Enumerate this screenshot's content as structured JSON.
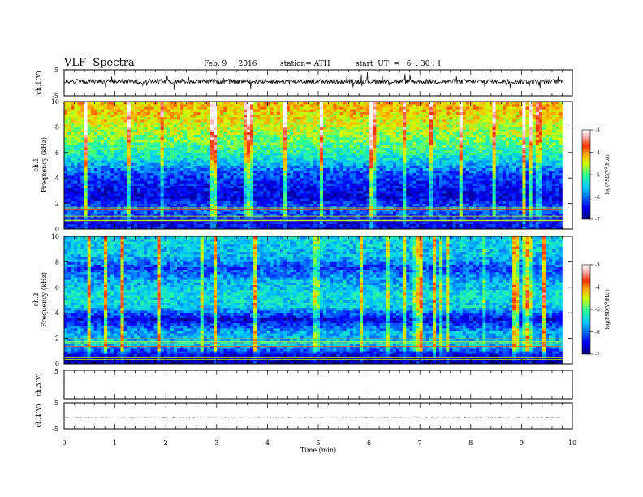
{
  "header": {
    "title": "VLF  Spectra",
    "date": "Feb. 9   , 2016",
    "station": "station= ATH",
    "start_ut": "start  UT  =   6  : 30 : 1"
  },
  "chart_data": [
    {
      "type": "line",
      "title": "",
      "ylabel": "ch.1(V)",
      "xlim": [
        0,
        10
      ],
      "ylim": [
        -5,
        5
      ],
      "yticks": [
        "5",
        "-5"
      ],
      "description_values": {
        "baseline_V": 0.5,
        "noise_amplitude_V": 1.5
      },
      "x_end_min": 9.8
    },
    {
      "type": "heatmap",
      "ylabel": "ch.1\nFrequency  (kHz)",
      "xlim": [
        0,
        10
      ],
      "ylim": [
        0,
        10
      ],
      "yticks": [
        "0",
        "2",
        "4",
        "6",
        "8",
        "10"
      ],
      "colorbar": {
        "label": "log(PSD(V²/Hz))",
        "range": [
          -7,
          -3
        ],
        "ticks": [
          "-3",
          "-4",
          "-5",
          "-6",
          "-7"
        ]
      },
      "band_profile_logPSD": [
        {
          "f_khz": 0.5,
          "value": -6.5
        },
        {
          "f_khz": 1.5,
          "value": -6.0
        },
        {
          "f_khz": 2.5,
          "value": -6.6
        },
        {
          "f_khz": 3.5,
          "value": -6.4
        },
        {
          "f_khz": 4.5,
          "value": -6.1
        },
        {
          "f_khz": 5.5,
          "value": -5.4
        },
        {
          "f_khz": 6.5,
          "value": -5.0
        },
        {
          "f_khz": 7.5,
          "value": -4.7
        },
        {
          "f_khz": 8.5,
          "value": -4.4
        },
        {
          "f_khz": 9.5,
          "value": -4.2
        }
      ]
    },
    {
      "type": "heatmap",
      "ylabel": "ch.2\nFrequency  (kHz)",
      "xlim": [
        0,
        10
      ],
      "ylim": [
        0,
        10
      ],
      "yticks": [
        "0",
        "2",
        "4",
        "6",
        "8",
        "10"
      ],
      "colorbar": {
        "label": "log(PSD(V²/Hz))",
        "range": [
          -7,
          -3
        ],
        "ticks": [
          "-3",
          "-4",
          "-5",
          "-6",
          "-7"
        ]
      },
      "band_profile_logPSD": [
        {
          "f_khz": 0.5,
          "value": -6.8
        },
        {
          "f_khz": 1.5,
          "value": -5.6
        },
        {
          "f_khz": 2.5,
          "value": -5.7
        },
        {
          "f_khz": 3.5,
          "value": -6.6
        },
        {
          "f_khz": 4.5,
          "value": -5.5
        },
        {
          "f_khz": 5.5,
          "value": -5.4
        },
        {
          "f_khz": 6.5,
          "value": -5.7
        },
        {
          "f_khz": 7.5,
          "value": -6.2
        },
        {
          "f_khz": 8.5,
          "value": -5.6
        },
        {
          "f_khz": 9.5,
          "value": -5.5
        }
      ]
    },
    {
      "type": "line",
      "ylabel": "ch.3(V)",
      "xlim": [
        0,
        10
      ],
      "ylim": [
        -5,
        5
      ],
      "yticks": [
        "5"
      ],
      "note_values": "no signal"
    },
    {
      "type": "line",
      "ylabel": "ch.4(V)",
      "xlim": [
        0,
        10
      ],
      "ylim": [
        -5,
        5
      ],
      "yticks": [
        "5",
        "-5"
      ],
      "description_values": {
        "baseline_V": -0.5,
        "noise_amplitude_V": 0.1
      },
      "x_end_min": 9.8
    }
  ],
  "xaxis": {
    "label": "Time  (min)",
    "ticks": [
      "0",
      "1",
      "2",
      "3",
      "4",
      "5",
      "6",
      "7",
      "8",
      "9",
      "10"
    ]
  },
  "colorbar_label_parts": {
    "pre": "log(PSD(V",
    "sup": "2",
    "post": "/Hz))"
  },
  "colors": {
    "trace": "#000000",
    "cmap": [
      "#00007f",
      "#0000ff",
      "#00c8ff",
      "#30ff90",
      "#d0ff00",
      "#ffb000",
      "#ff3000",
      "#ffb0b0",
      "#ffffff"
    ]
  }
}
